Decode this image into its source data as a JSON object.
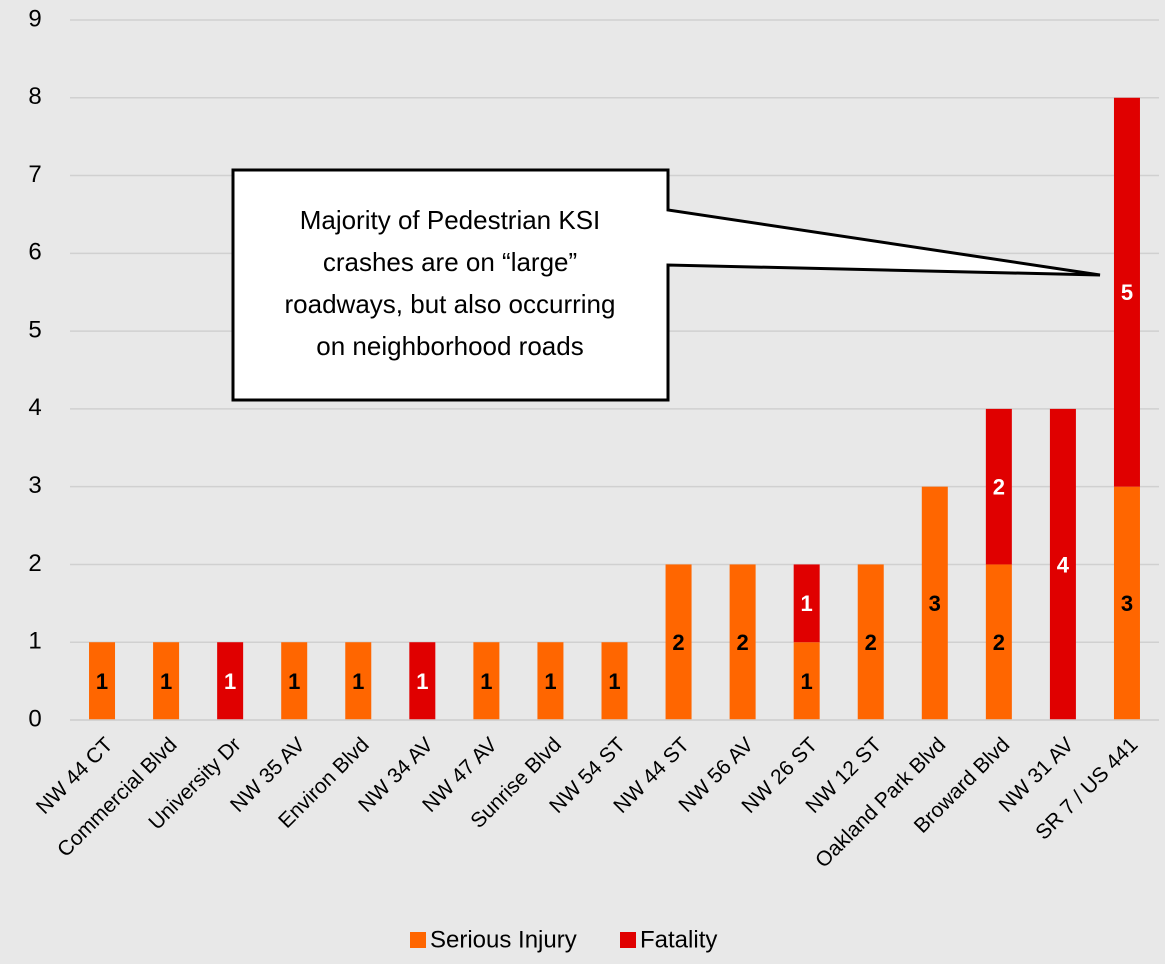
{
  "chart_data": {
    "type": "stacked_bar",
    "categories": [
      "NW 44 CT",
      "Commercial Blvd",
      "University Dr",
      "NW 35 AV",
      "Environ Blvd",
      "NW 34 AV",
      "NW 47 AV",
      "Sunrise Blvd",
      "NW 54 ST",
      "NW 44 ST",
      "NW 56 AV",
      "NW 26 ST",
      "NW 12 ST",
      "Oakland Park Blvd",
      "Broward Blvd",
      "NW 31 AV",
      "SR 7 / US 441"
    ],
    "series": [
      {
        "name": "Serious Injury",
        "color": "#ff6600",
        "label_color": "#000000",
        "values": [
          1,
          1,
          0,
          1,
          1,
          0,
          1,
          1,
          1,
          2,
          2,
          1,
          2,
          3,
          2,
          0,
          3
        ]
      },
      {
        "name": "Fatality",
        "color": "#e00000",
        "label_color": "#ffffff",
        "values": [
          0,
          0,
          1,
          0,
          0,
          1,
          0,
          0,
          0,
          0,
          0,
          1,
          0,
          0,
          2,
          4,
          5
        ]
      }
    ],
    "ylim": [
      0,
      9
    ],
    "yticks": [
      0,
      1,
      2,
      3,
      4,
      5,
      6,
      7,
      8,
      9
    ],
    "grid": true,
    "legend": "bottom",
    "annotation": [
      "Majority of Pedestrian KSI",
      "crashes are on “large”",
      "roadways, but also occurring",
      "on neighborhood roads"
    ]
  }
}
